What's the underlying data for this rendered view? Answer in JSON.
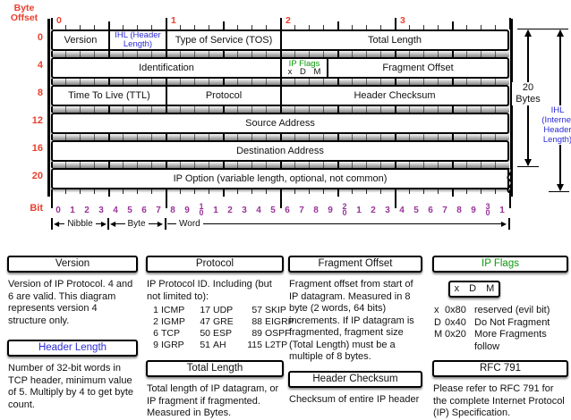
{
  "colors": {
    "red": "#e8402f",
    "purple": "#993399",
    "blue": "#2b2bd8",
    "green": "#0a9a0a"
  },
  "header_diagram": {
    "byte_offset_label": "Byte Offset",
    "byte_numbers": [
      "0",
      "1",
      "2",
      "3"
    ],
    "row_offsets": [
      "0",
      "4",
      "8",
      "12",
      "16",
      "20"
    ],
    "fields": {
      "version": "Version",
      "ihl": "IHL (Header Length)",
      "tos": "Type of Service (TOS)",
      "total_length": "Total Length",
      "identification": "Identification",
      "ip_flags_title": "IP Flags",
      "ip_flags_bits": "x D M",
      "fragment_offset": "Fragment Offset",
      "ttl": "Time To Live (TTL)",
      "protocol": "Protocol",
      "header_checksum": "Header Checksum",
      "source_address": "Source Address",
      "destination_address": "Destination Address",
      "ip_option": "IP Option (variable length, optional, not common)"
    },
    "bit_label": "Bit",
    "bit_numbers": [
      "0",
      "1",
      "2",
      "3",
      "4",
      "5",
      "6",
      "7",
      "8",
      "9",
      "10",
      "1",
      "2",
      "3",
      "4",
      "5",
      "6",
      "7",
      "8",
      "9",
      "20",
      "1",
      "2",
      "3",
      "4",
      "5",
      "6",
      "7",
      "8",
      "9",
      "30",
      "1"
    ],
    "measure_labels": {
      "nibble": "Nibble",
      "byte": "Byte",
      "word": "Word"
    },
    "right_measures": {
      "twenty_bytes": "20 Bytes",
      "ihl_note": "IHL (Internet Header Length)"
    }
  },
  "notes": {
    "version": {
      "title": "Version",
      "body": "Version of IP Protocol.  4 and 6 are valid.  This diagram represents version 4 structure only."
    },
    "header_length": {
      "title": "Header Length",
      "body": "Number of 32-bit words in TCP header, minimum value of 5.  Multiply by 4 to get byte count."
    },
    "protocol": {
      "title": "Protocol",
      "intro": "IP Protocol ID.  Including (but not limited to):",
      "table": [
        [
          "1",
          "ICMP",
          "17",
          "UDP",
          "57",
          "SKIP"
        ],
        [
          "2",
          "IGMP",
          "47",
          "GRE",
          "88",
          "EIGRP"
        ],
        [
          "6",
          "TCP",
          "50",
          "ESP",
          "89",
          "OSPF"
        ],
        [
          "9",
          "IGRP",
          "51",
          "AH",
          "115",
          "L2TP"
        ]
      ]
    },
    "total_length": {
      "title": "Total Length",
      "body": "Total length of IP datagram, or IP fragment if fragmented.  Measured in Bytes."
    },
    "fragment_offset": {
      "title": "Fragment Offset",
      "body": "Fragment offset from start of IP datagram.  Measured in 8 byte (2 words, 64 bits) increments.  If IP datagram is fragmented, fragment size (Total Length) must be a multiple of 8 bytes."
    },
    "header_checksum": {
      "title": "Header Checksum",
      "body": "Checksum of entire IP header"
    },
    "ip_flags": {
      "title": "IP Flags",
      "box": "x D M",
      "flags": [
        {
          "key": "x",
          "code": "0x80",
          "desc": "reserved (evil bit)"
        },
        {
          "key": "D",
          "code": "0x40",
          "desc": "Do Not Fragment"
        },
        {
          "key": "M",
          "code": "0x20",
          "desc": "More Fragments follow"
        }
      ]
    },
    "rfc": {
      "title": "RFC 791",
      "body": "Please refer to RFC 791 for the complete Internet Protocol (IP) Specification."
    }
  }
}
